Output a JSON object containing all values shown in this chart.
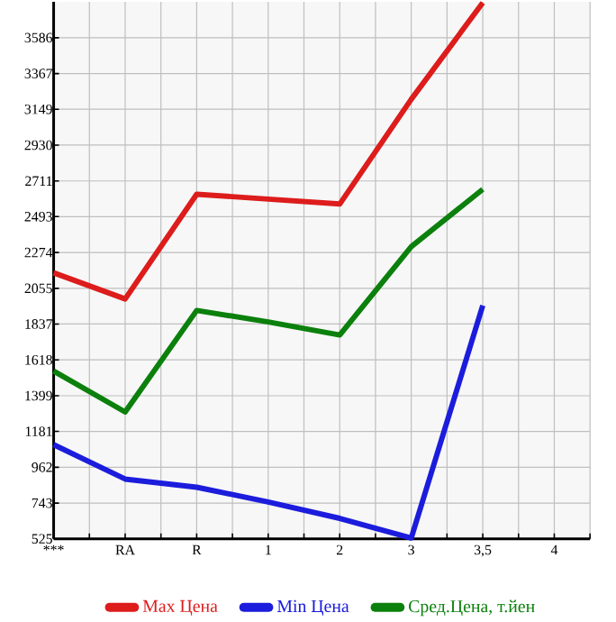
{
  "chart_data": {
    "type": "line",
    "categories": [
      "***",
      "RA",
      "R",
      "1",
      "2",
      "3",
      "3,5",
      "4"
    ],
    "series": [
      {
        "name": "Max Цена",
        "color": "#dd1c1c",
        "values": [
          2150,
          1990,
          2630,
          2600,
          2570,
          3210,
          3800,
          null
        ]
      },
      {
        "name": "Min Цена",
        "color": "#1c1cdd",
        "values": [
          1100,
          890,
          840,
          750,
          650,
          530,
          1950,
          null
        ]
      },
      {
        "name": "Сред.Цена, т.йен",
        "color": "#0c800c",
        "values": [
          1550,
          1300,
          1920,
          1850,
          1770,
          2310,
          2660,
          null
        ]
      }
    ],
    "ylim": [
      525,
      3805
    ],
    "yticks": [
      525,
      743,
      962,
      1181,
      1399,
      1618,
      1837,
      2055,
      2274,
      2493,
      2711,
      2930,
      3149,
      3367,
      3586
    ],
    "grid": true,
    "legend": "bottom",
    "marker": "none",
    "line_style": "solid"
  }
}
